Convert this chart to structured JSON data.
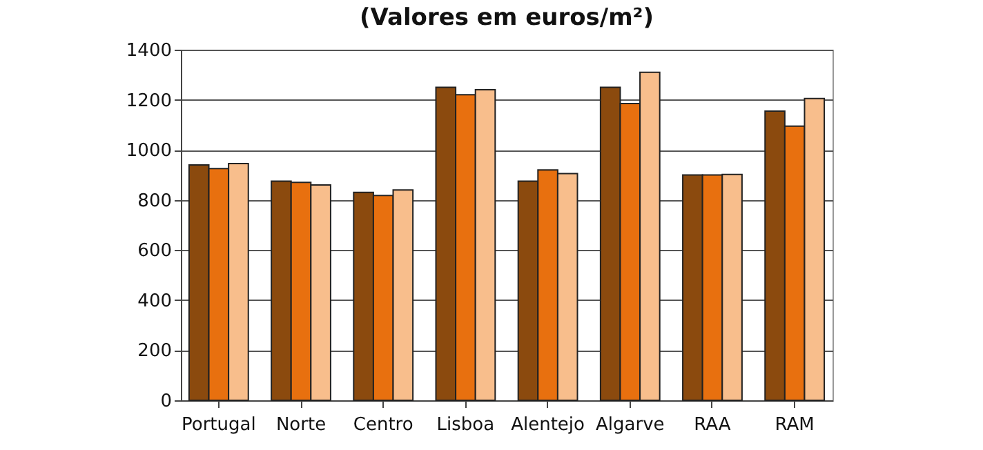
{
  "chart_data": {
    "type": "bar",
    "title": "(Valores em euros/m²)",
    "categories": [
      "Portugal",
      "Norte",
      "Centro",
      "Lisboa",
      "Alentejo",
      "Algarve",
      "RAA",
      "RAM"
    ],
    "series": [
      {
        "color": "#8b4a0e",
        "values": [
          940,
          875,
          830,
          1250,
          875,
          1250,
          900,
          1155
        ]
      },
      {
        "color": "#e8700f",
        "values": [
          925,
          870,
          818,
          1220,
          920,
          1185,
          900,
          1095
        ]
      },
      {
        "color": "#f8be8c",
        "values": [
          945,
          860,
          840,
          1240,
          905,
          1310,
          902,
          1205
        ]
      }
    ],
    "ylim": [
      0,
      1400
    ],
    "yticks": [
      0,
      200,
      400,
      600,
      800,
      1000,
      1200,
      1400
    ],
    "grid": "y",
    "legend": false
  }
}
